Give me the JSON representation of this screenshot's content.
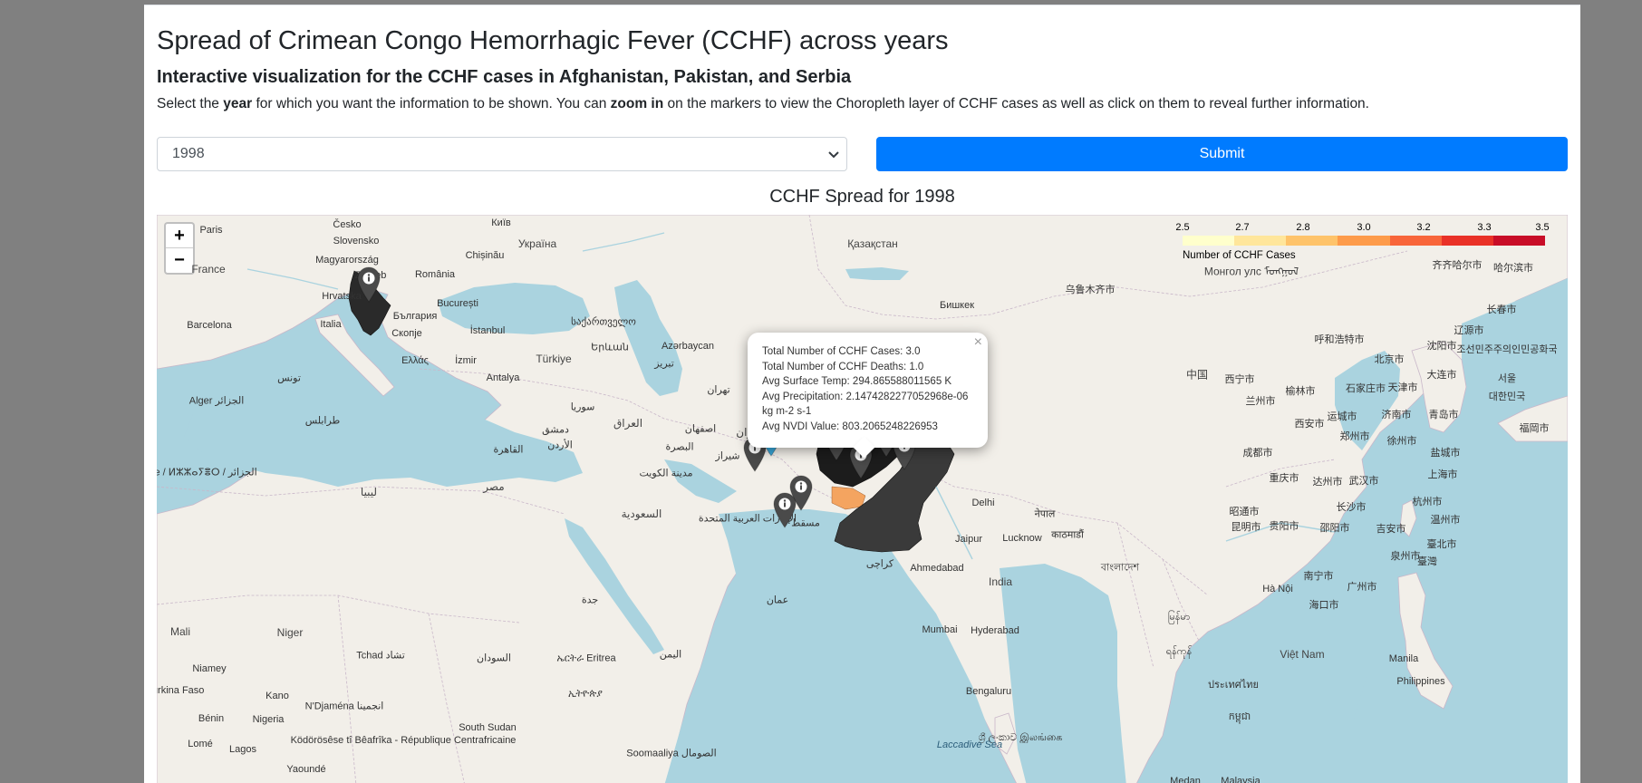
{
  "header": {
    "title": "Spread of Crimean Congo Hemorrhagic Fever (CCHF) across years",
    "subtitle": "Interactive visualization for the CCHF cases in Afghanistan, Pakistan, and Serbia",
    "instr_1": "Select the ",
    "instr_b1": "year",
    "instr_2": " for which you want the information to be shown. You can ",
    "instr_b2": "zoom in",
    "instr_3": " on the markers to view the Choropleth layer of CCHF cases as well as click on them to reveal further information."
  },
  "form": {
    "selected_year": "1998",
    "submit_label": "Submit"
  },
  "map": {
    "title": "CCHF Spread for 1998",
    "zoom_in": "+",
    "zoom_out": "−",
    "legend": {
      "ticks": [
        "2.5",
        "2.7",
        "2.8",
        "3.0",
        "3.2",
        "3.3",
        "3.5"
      ],
      "caption": "Number of CCHF Cases",
      "colors": [
        "#ffffcc",
        "#ffe69b",
        "#fec36a",
        "#fd9b4a",
        "#f8653a",
        "#e93127",
        "#c80d27"
      ]
    },
    "popup": {
      "line1": "Total Number of CCHF Cases: 3.0",
      "line2": "Total Number of CCHF Deaths: 1.0",
      "line3": "Avg Surface Temp: 294.865588011565 K",
      "line4": "Avg Precipitation: 2.1474282277052968e-06",
      "line5": "kg m-2 s-1",
      "line6": "Avg NVDI Value: 803.2065248226953",
      "close": "×"
    },
    "colors": {
      "land": "#f2efe9",
      "water": "#aad3df",
      "choropleth_dark": "#2a2a2a",
      "choropleth_orange": "#f4a460",
      "marker_gray": "#4a4a4a",
      "marker_blue": "#38a9dc"
    },
    "marker_icon": "info-icon",
    "labels": {
      "paris": "Paris",
      "cesko": "Česko",
      "kyiv": "Київ",
      "slovensko": "Slovensko",
      "ukraina": "Україна",
      "kazakhstan": "Қазақстан",
      "magyar": "Magyarország",
      "chisinau": "Chișinău",
      "france": "France",
      "zagreb": "Zagreb",
      "romania": "România",
      "hrvatska": "Hrvatska",
      "bucuresti": "București",
      "bulgaria": "България",
      "barcelona": "Barcelona",
      "italia": "Italia",
      "istanbul": "İstanbul",
      "skopje": "Скопје",
      "georgia": "საქართველო",
      "yerevan": "Երևան",
      "azerbaycan": "Azərbaycan",
      "bishkek": "Бишкек",
      "urumqi": "乌鲁木齐市",
      "ellas": "Ελλάς",
      "izmir": "İzmir",
      "turkiye": "Türkiye",
      "antalya": "Antalya",
      "tabriz": "تبریز",
      "tehran": "تهران",
      "tunis": "تونس",
      "alger": "Alger الجزائر",
      "syria": "سوريا",
      "iraq": "العراق",
      "damascus": "دمشق",
      "esfahan": "اصفهان",
      "iran": "ایران",
      "jordan": "الأردن",
      "basra": "البصرة",
      "shiraz": "شیراز",
      "cairo": "القاهرة",
      "kuwait": "مدينة الكويت",
      "tripoli": "طرابلس",
      "algerie": "Algérie / ⵍⵣⵣⴰⵢⴻⵔ / الجزائر",
      "libya": "ليبيا",
      "misr": "مصر",
      "saudi": "السعودية",
      "uae": "الإمارات العربية المتحدة",
      "muscat": "مسقط",
      "karachi": "کراچی",
      "delhi": "Delhi",
      "nepal": "नेपाल",
      "kathmandu": "काठमाडौं",
      "lucknow": "Lucknow",
      "jaipur": "Jaipur",
      "ahmedabad": "Ahmedabad",
      "india": "India",
      "bangladesh": "বাংলাদেশ",
      "mumbai": "Mumbai",
      "hyderabad": "Hyderabad",
      "bengaluru": "Bengaluru",
      "srilanka": "ශ්‍රී ලංකාව இலங்கை",
      "laccadive": "Laccadive Sea",
      "jeddah": "جدة",
      "oman": "عمان",
      "yemen": "اليمن",
      "eritrea": "ኤርትራ Eritrea",
      "sudan": "السودان",
      "ethiopia": "ኢትዮጵያ",
      "southsudan": "South Sudan",
      "somalia": "Soomaaliya الصومال",
      "mali": "Mali",
      "niger": "Niger",
      "tchad": "Tchad تشاد",
      "niamey": "Niamey",
      "burkina": "Burkina Faso",
      "kano": "Kano",
      "ndjamena": "N'Djaména انجمينا",
      "benin": "Bénin",
      "nigeria": "Nigeria",
      "car": "Ködörösêse tî Bêafrîka - République Centrafricaine",
      "lome": "Lomé",
      "lagos": "Lagos",
      "yaounde": "Yaoundé",
      "china": "中国",
      "xining": "西宁市",
      "lanzhou": "兰州市",
      "xian": "西安市",
      "chengdu": "成都市",
      "chongqing": "重庆市",
      "kunming": "昆明市",
      "guiyang": "贵阳市",
      "zhaotong": "昭通市",
      "hohhot": "呼和浩特市",
      "beijing": "北京市",
      "shijiazhuang": "石家庄市",
      "tianjin": "天津市",
      "yulin": "榆林市",
      "yuncheng": "运城市",
      "zhengzhou": "郑州市",
      "jinan": "济南市",
      "qingdao": "青岛市",
      "xuzhou": "徐州市",
      "wuhan": "武汉市",
      "dazhou": "达州市",
      "changsha": "长沙市",
      "shaoyang": "邵阳市",
      "jian": "吉安市",
      "quanzhou": "泉州市",
      "nanning": "南宁市",
      "guangzhou": "广州市",
      "hanoi": "Hà Nội",
      "haikou": "海口市",
      "shanghai": "上海市",
      "yancheng": "盐城市",
      "hangzhou": "杭州市",
      "wenzhou": "温州市",
      "taipei": "臺北市",
      "taiwan": "臺灣",
      "shenyang": "沈阳市",
      "dalian": "大连市",
      "changchun": "长春市",
      "liaoyuan": "辽源市",
      "qiqihar": "齐齐哈尔市",
      "harbin": "哈尔滨市",
      "mongolia": "Монгол улс ᠮᠣᠩᠭᠣᠯ",
      "korea_n": "조선민주주의인민공화국",
      "seoul": "서울",
      "korea_s": "대한민국",
      "fukuoka": "福岡市",
      "myanmar": "မြန်မာ",
      "yangon": "ရန်ကုန်",
      "vietnam": "Việt Nam",
      "thailand": "ประเทศไทย",
      "manila": "Manila",
      "philippines": "Philippines",
      "cambodia": "កម្ពុជា",
      "madan": "Medan",
      "malaysia": "Malaysia"
    }
  }
}
